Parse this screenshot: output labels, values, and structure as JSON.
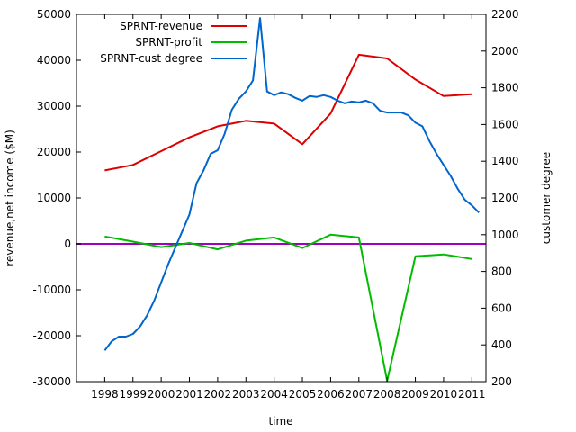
{
  "chart_data": {
    "type": "line",
    "title": "",
    "xlabel": "time",
    "ylabel": "revenue,net income ($M)",
    "y2label": "customer degree",
    "xlim": [
      1997.0,
      2011.5
    ],
    "ylim": [
      -30000,
      50000
    ],
    "y2lim": [
      200,
      2200
    ],
    "x_ticks": [
      "1998",
      "1999",
      "2000",
      "2001",
      "2002",
      "2003",
      "2004",
      "2005",
      "2006",
      "2007",
      "2008",
      "2009",
      "2010",
      "2011"
    ],
    "y_ticks": [
      "-30000",
      "-20000",
      "-10000",
      "0",
      "10000",
      "20000",
      "30000",
      "40000",
      "50000"
    ],
    "y2_ticks": [
      "200",
      "400",
      "600",
      "800",
      "1000",
      "1200",
      "1400",
      "1600",
      "1800",
      "2000",
      "2200"
    ],
    "grid": false,
    "legend_position": "top-left",
    "zero_line": {
      "y": 0,
      "color": "#a000c0"
    },
    "series": [
      {
        "name": "SPRNT-revenue",
        "axis": "left",
        "color": "#dd0000",
        "x": [
          1998,
          1999,
          2000,
          2001,
          2002,
          2003,
          2004,
          2005,
          2006,
          2007,
          2008,
          2009,
          2010,
          2011
        ],
        "y": [
          16000,
          17200,
          20200,
          23200,
          25600,
          26800,
          26200,
          21700,
          28400,
          41200,
          40400,
          35800,
          32200,
          32600
        ]
      },
      {
        "name": "SPRNT-profit",
        "axis": "left",
        "color": "#00bb00",
        "x": [
          1998,
          1999,
          2000,
          2001,
          2002,
          2003,
          2004,
          2005,
          2006,
          2007,
          2008,
          2009,
          2010,
          2011
        ],
        "y": [
          1600,
          500,
          -700,
          200,
          -1200,
          700,
          1400,
          -900,
          2000,
          1400,
          -29800,
          -2700,
          -2300,
          -3300
        ]
      },
      {
        "name": "SPRNT-cust degree",
        "axis": "right",
        "color": "#0066cc",
        "x": [
          1998,
          1998.25,
          1998.5,
          1998.75,
          1999,
          1999.25,
          1999.5,
          1999.75,
          2000,
          2000.25,
          2000.5,
          2000.75,
          2001,
          2001.25,
          2001.5,
          2001.75,
          2002,
          2002.25,
          2002.5,
          2002.75,
          2003,
          2003.25,
          2003.5,
          2003.75,
          2004,
          2004.25,
          2004.5,
          2004.75,
          2005,
          2005.25,
          2005.5,
          2005.75,
          2006,
          2006.25,
          2006.5,
          2006.75,
          2007,
          2007.25,
          2007.5,
          2007.75,
          2008,
          2008.25,
          2008.5,
          2008.75,
          2009,
          2009.25,
          2009.5,
          2009.75,
          2010,
          2010.25,
          2010.5,
          2010.75,
          2011,
          2011.25
        ],
        "y": [
          370,
          420,
          445,
          445,
          460,
          500,
          560,
          640,
          740,
          840,
          930,
          1020,
          1110,
          1280,
          1350,
          1440,
          1460,
          1550,
          1680,
          1740,
          1780,
          1840,
          2180,
          1780,
          1760,
          1775,
          1765,
          1745,
          1730,
          1755,
          1750,
          1760,
          1750,
          1730,
          1715,
          1725,
          1720,
          1730,
          1715,
          1675,
          1665,
          1665,
          1665,
          1650,
          1610,
          1590,
          1510,
          1440,
          1380,
          1320,
          1250,
          1190,
          1160,
          1120
        ]
      }
    ]
  }
}
